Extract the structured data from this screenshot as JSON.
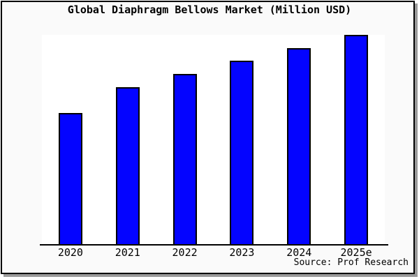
{
  "source": "Source: Prof Research",
  "colors": {
    "figure_bg": "#fafafa",
    "plot_bg": "#ffffff",
    "frame_border": "#000000",
    "shadow": "#9a9a9a",
    "bar_fill": "#0404ff",
    "bar_border": "#000000",
    "axis": "#000000",
    "text": "#000000"
  },
  "chart_data": {
    "type": "bar",
    "title": "Global Diaphragm Bellows Market (Million USD)",
    "categories": [
      "2020",
      "2021",
      "2022",
      "2023",
      "2024",
      "2025e"
    ],
    "values": [
      100,
      120,
      130,
      140,
      150,
      160
    ],
    "xlabel": "",
    "ylabel": "",
    "ylim": [
      0,
      160
    ],
    "grid": false,
    "y_axis_visible": false,
    "legend": "none",
    "source_label": "Source: Prof Research"
  }
}
